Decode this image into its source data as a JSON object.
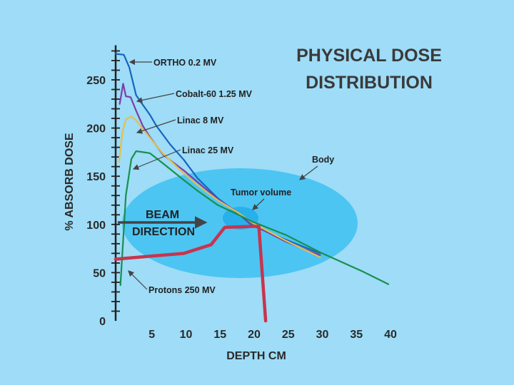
{
  "chart_data": {
    "type": "line",
    "title": [
      "PHYSICAL DOSE",
      "DISTRIBUTION"
    ],
    "xlabel": "DEPTH CM",
    "ylabel": "% ABSORB DOSE",
    "xlim": [
      0,
      40
    ],
    "ylim": [
      0,
      280
    ],
    "x_ticks": [
      5,
      10,
      15,
      20,
      25,
      30,
      35,
      40
    ],
    "y_ticks": [
      0,
      50,
      100,
      150,
      200,
      250
    ],
    "grid": false,
    "colors": {
      "background": "#9edcf7",
      "body": "#4cc5f2",
      "tumor": "#29b0ea",
      "axis": "#222222",
      "ortho": "#1565c0",
      "cobalt": "#7b3fa8",
      "linac8": "#e0c050",
      "linac25": "#179050",
      "protons": "#c8344e",
      "arrow": "#444444"
    },
    "series": [
      {
        "name": "ORTHO 0.2 MV",
        "color_key": "ortho",
        "points": [
          [
            0,
            277
          ],
          [
            1.2,
            276
          ],
          [
            2,
            263
          ],
          [
            3,
            234
          ],
          [
            4,
            224
          ],
          [
            5,
            214
          ],
          [
            6,
            202
          ],
          [
            8,
            183
          ],
          [
            10,
            167
          ],
          [
            12,
            148
          ],
          [
            15,
            127
          ],
          [
            18,
            111
          ],
          [
            20,
            99
          ],
          [
            25,
            84
          ],
          [
            30,
            70
          ]
        ]
      },
      {
        "name": "Cobalt-60 1.25 MV",
        "color_key": "cobalt",
        "points": [
          [
            0.6,
            225
          ],
          [
            1.1,
            246
          ],
          [
            1.5,
            233
          ],
          [
            2.2,
            232
          ],
          [
            3,
            218
          ],
          [
            4,
            202
          ],
          [
            5,
            191
          ],
          [
            7,
            172
          ],
          [
            10,
            156
          ],
          [
            12,
            144
          ],
          [
            15,
            126
          ],
          [
            18,
            112
          ],
          [
            20,
            100
          ],
          [
            25,
            82
          ],
          [
            30,
            68
          ]
        ]
      },
      {
        "name": "Linac 8 MV",
        "color_key": "linac8",
        "points": [
          [
            0.5,
            165
          ],
          [
            1,
            196
          ],
          [
            1.5,
            209
          ],
          [
            2.3,
            212
          ],
          [
            3,
            208
          ],
          [
            5,
            190
          ],
          [
            7,
            173
          ],
          [
            10,
            153
          ],
          [
            12,
            141
          ],
          [
            15,
            125
          ],
          [
            18,
            112
          ],
          [
            20,
            102
          ],
          [
            25,
            83
          ],
          [
            30,
            66
          ]
        ]
      },
      {
        "name": "Linac 25 MV",
        "color_key": "linac25",
        "points": [
          [
            0.7,
            37
          ],
          [
            1.5,
            130
          ],
          [
            2.3,
            168
          ],
          [
            3,
            176
          ],
          [
            4,
            175
          ],
          [
            5,
            174
          ],
          [
            7,
            163
          ],
          [
            10,
            146
          ],
          [
            12,
            135
          ],
          [
            15,
            120
          ],
          [
            18,
            110
          ],
          [
            20,
            103
          ],
          [
            25,
            89
          ],
          [
            30,
            71
          ],
          [
            36,
            52
          ],
          [
            40,
            38
          ]
        ]
      },
      {
        "name": "Protons 250 MV",
        "color_key": "protons",
        "points": [
          [
            0,
            64
          ],
          [
            5,
            67
          ],
          [
            10,
            70
          ],
          [
            14,
            79
          ],
          [
            16,
            97
          ],
          [
            20,
            98
          ],
          [
            21,
            98
          ],
          [
            22,
            0
          ]
        ]
      }
    ],
    "annotations": {
      "ortho": "ORTHO  0.2 MV",
      "cobalt": "Cobalt-60  1.25 MV",
      "linac8": "Linac  8 MV",
      "linac25": "Linac  25 MV",
      "protons": "Protons  250 MV",
      "body": "Body",
      "tumor": "Tumor volume",
      "beam": [
        "BEAM",
        "DIRECTION"
      ]
    }
  }
}
